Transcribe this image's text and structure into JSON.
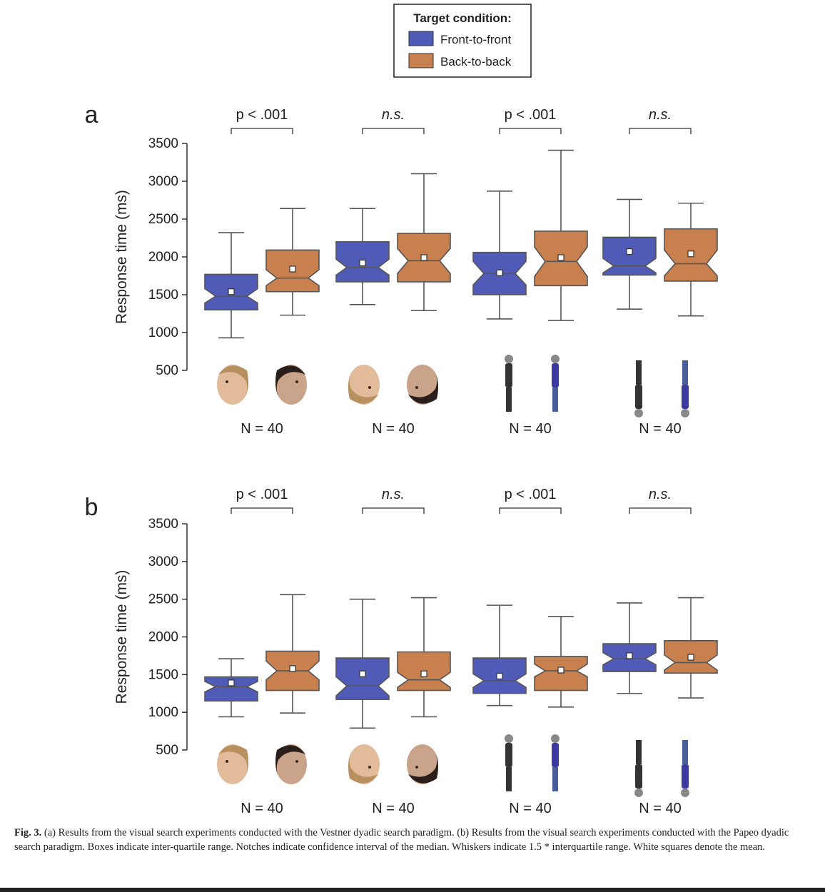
{
  "legend": {
    "title": "Target condition:",
    "items": [
      {
        "label": "Front-to-front",
        "color": "#4F5BB6"
      },
      {
        "label": "Back-to-back",
        "color": "#C8804E"
      }
    ]
  },
  "caption": {
    "label": "Fig. 3.",
    "text": "(a) Results from the visual search experiments conducted with the Vestner dyadic search paradigm. (b) Results from the visual search experiments conducted with the Papeo dyadic search paradigm. Boxes indicate inter-quartile range. Notches indicate confidence interval of the median. Whiskers indicate 1.5 * interquartile range. White squares denote the mean."
  },
  "chart_data": [
    {
      "type": "box",
      "panel_label": "a",
      "ylabel": "Response time (ms)",
      "yticks": [
        500,
        1000,
        1500,
        2000,
        2500,
        3000,
        3500
      ],
      "ylim": [
        500,
        3500
      ],
      "groups": [
        {
          "significance": "p < .001",
          "n_label": "N = 40",
          "stimulus": "faces-upright"
        },
        {
          "significance": "n.s.",
          "n_label": "N = 40",
          "stimulus": "faces-inverted"
        },
        {
          "significance": "p < .001",
          "n_label": "N = 40",
          "stimulus": "bodies-upright"
        },
        {
          "significance": "n.s.",
          "n_label": "N = 40",
          "stimulus": "bodies-inverted"
        }
      ],
      "series": [
        {
          "name": "Front-to-front",
          "boxes": [
            {
              "min": 930,
              "q1": 1300,
              "median": 1480,
              "q3": 1770,
              "max": 2320,
              "mean": 1540,
              "notch_low": 1390,
              "notch_high": 1580
            },
            {
              "min": 1370,
              "q1": 1670,
              "median": 1860,
              "q3": 2200,
              "max": 2640,
              "mean": 1920,
              "notch_low": 1760,
              "notch_high": 1970
            },
            {
              "min": 1180,
              "q1": 1500,
              "median": 1780,
              "q3": 2060,
              "max": 2870,
              "mean": 1790,
              "notch_low": 1630,
              "notch_high": 1940
            },
            {
              "min": 1310,
              "q1": 1760,
              "median": 1880,
              "q3": 2260,
              "max": 2760,
              "mean": 2070,
              "notch_low": 1790,
              "notch_high": 1980
            }
          ]
        },
        {
          "name": "Back-to-back",
          "boxes": [
            {
              "min": 1230,
              "q1": 1540,
              "median": 1720,
              "q3": 2090,
              "max": 2640,
              "mean": 1840,
              "notch_low": 1620,
              "notch_high": 1830
            },
            {
              "min": 1290,
              "q1": 1670,
              "median": 1950,
              "q3": 2310,
              "max": 3100,
              "mean": 1990,
              "notch_low": 1780,
              "notch_high": 2110
            },
            {
              "min": 1160,
              "q1": 1620,
              "median": 1940,
              "q3": 2340,
              "max": 3410,
              "mean": 1990,
              "notch_low": 1740,
              "notch_high": 2130
            },
            {
              "min": 1220,
              "q1": 1680,
              "median": 1910,
              "q3": 2370,
              "max": 2710,
              "mean": 2040,
              "notch_low": 1750,
              "notch_high": 2090
            }
          ]
        }
      ]
    },
    {
      "type": "box",
      "panel_label": "b",
      "ylabel": "Response time (ms)",
      "yticks": [
        500,
        1000,
        1500,
        2000,
        2500,
        3000,
        3500
      ],
      "ylim": [
        500,
        3500
      ],
      "groups": [
        {
          "significance": "p < .001",
          "n_label": "N = 40",
          "stimulus": "faces-upright"
        },
        {
          "significance": "n.s.",
          "n_label": "N = 40",
          "stimulus": "faces-inverted"
        },
        {
          "significance": "p < .001",
          "n_label": "N = 40",
          "stimulus": "bodies-upright"
        },
        {
          "significance": "n.s.",
          "n_label": "N = 40",
          "stimulus": "bodies-inverted"
        }
      ],
      "series": [
        {
          "name": "Front-to-front",
          "boxes": [
            {
              "min": 940,
              "q1": 1150,
              "median": 1340,
              "q3": 1470,
              "max": 1710,
              "mean": 1390,
              "notch_low": 1270,
              "notch_high": 1410
            },
            {
              "min": 790,
              "q1": 1170,
              "median": 1350,
              "q3": 1720,
              "max": 2500,
              "mean": 1510,
              "notch_low": 1220,
              "notch_high": 1470
            },
            {
              "min": 1090,
              "q1": 1250,
              "median": 1420,
              "q3": 1720,
              "max": 2420,
              "mean": 1480,
              "notch_low": 1330,
              "notch_high": 1510
            },
            {
              "min": 1250,
              "q1": 1540,
              "median": 1710,
              "q3": 1910,
              "max": 2450,
              "mean": 1750,
              "notch_low": 1630,
              "notch_high": 1790
            }
          ]
        },
        {
          "name": "Back-to-back",
          "boxes": [
            {
              "min": 990,
              "q1": 1290,
              "median": 1550,
              "q3": 1810,
              "max": 2560,
              "mean": 1580,
              "notch_low": 1430,
              "notch_high": 1680
            },
            {
              "min": 940,
              "q1": 1290,
              "median": 1430,
              "q3": 1800,
              "max": 2520,
              "mean": 1510,
              "notch_low": 1330,
              "notch_high": 1530
            },
            {
              "min": 1070,
              "q1": 1290,
              "median": 1550,
              "q3": 1740,
              "max": 2270,
              "mean": 1560,
              "notch_low": 1470,
              "notch_high": 1640
            },
            {
              "min": 1190,
              "q1": 1520,
              "median": 1660,
              "q3": 1950,
              "max": 2520,
              "mean": 1730,
              "notch_low": 1560,
              "notch_high": 1760
            }
          ]
        }
      ]
    }
  ]
}
